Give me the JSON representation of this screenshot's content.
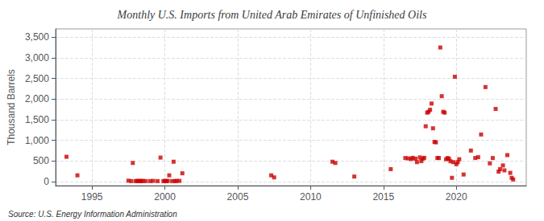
{
  "chart_data": {
    "type": "scatter",
    "title": "Monthly U.S. Imports from United Arab Emirates of Unfinished Oils",
    "ylabel": "Thousand Barrels",
    "annotations": [
      "Source: U.S. Energy Information Administration"
    ],
    "color": "#cc0000",
    "marker": "square",
    "grid": true,
    "xlim": [
      1992.5,
      2024.8
    ],
    "ylim": [
      -100,
      3700
    ],
    "xticks": [
      1995,
      2000,
      2005,
      2010,
      2015,
      2020
    ],
    "yticks": [
      0,
      500,
      {
        "value": 1000,
        "label": "1,000"
      },
      {
        "value": 1500,
        "label": "1,500"
      },
      {
        "value": 2000,
        "label": "2,000"
      },
      {
        "value": 2500,
        "label": "2,500"
      },
      {
        "value": 3000,
        "label": "3,000"
      },
      {
        "value": 3500,
        "label": "3,500"
      }
    ],
    "x": [
      1993.25,
      1994.0,
      1997.5,
      1997.7,
      1997.8,
      1998.0,
      1998.1,
      1998.2,
      1998.3,
      1998.4,
      1998.5,
      1998.7,
      1999.0,
      1999.2,
      1999.5,
      1999.7,
      1999.9,
      2000.0,
      2000.1,
      2000.2,
      2000.3,
      2000.5,
      2000.6,
      2000.7,
      2000.8,
      2001.0,
      2001.2,
      2007.3,
      2007.5,
      2011.5,
      2011.7,
      2013.0,
      2015.5,
      2016.5,
      2016.7,
      2016.9,
      2017.0,
      2017.2,
      2017.3,
      2017.5,
      2017.6,
      2017.7,
      2017.8,
      2017.9,
      2018.0,
      2018.1,
      2018.2,
      2018.3,
      2018.4,
      2018.5,
      2018.6,
      2018.7,
      2018.8,
      2018.9,
      2019.0,
      2019.1,
      2019.2,
      2019.3,
      2019.4,
      2019.5,
      2019.6,
      2019.7,
      2019.8,
      2019.9,
      2020.0,
      2020.1,
      2020.2,
      2020.5,
      2021.0,
      2021.3,
      2021.5,
      2021.7,
      2022.0,
      2022.3,
      2022.5,
      2022.7,
      2022.9,
      2023.0,
      2023.2,
      2023.3,
      2023.5,
      2023.7,
      2023.8,
      2023.9
    ],
    "values": [
      600,
      150,
      20,
      10,
      450,
      10,
      15,
      10,
      15,
      10,
      15,
      10,
      10,
      15,
      10,
      580,
      10,
      15,
      10,
      15,
      150,
      10,
      480,
      10,
      15,
      15,
      200,
      150,
      100,
      480,
      450,
      120,
      300,
      570,
      560,
      545,
      575,
      555,
      470,
      585,
      495,
      555,
      575,
      1340,
      1670,
      1690,
      1740,
      1890,
      1290,
      960,
      950,
      570,
      570,
      3250,
      2070,
      1690,
      1670,
      540,
      570,
      550,
      490,
      90,
      470,
      2540,
      420,
      470,
      540,
      170,
      750,
      570,
      590,
      1140,
      2290,
      440,
      570,
      1760,
      240,
      300,
      390,
      270,
      640,
      210,
      90,
      50
    ]
  }
}
